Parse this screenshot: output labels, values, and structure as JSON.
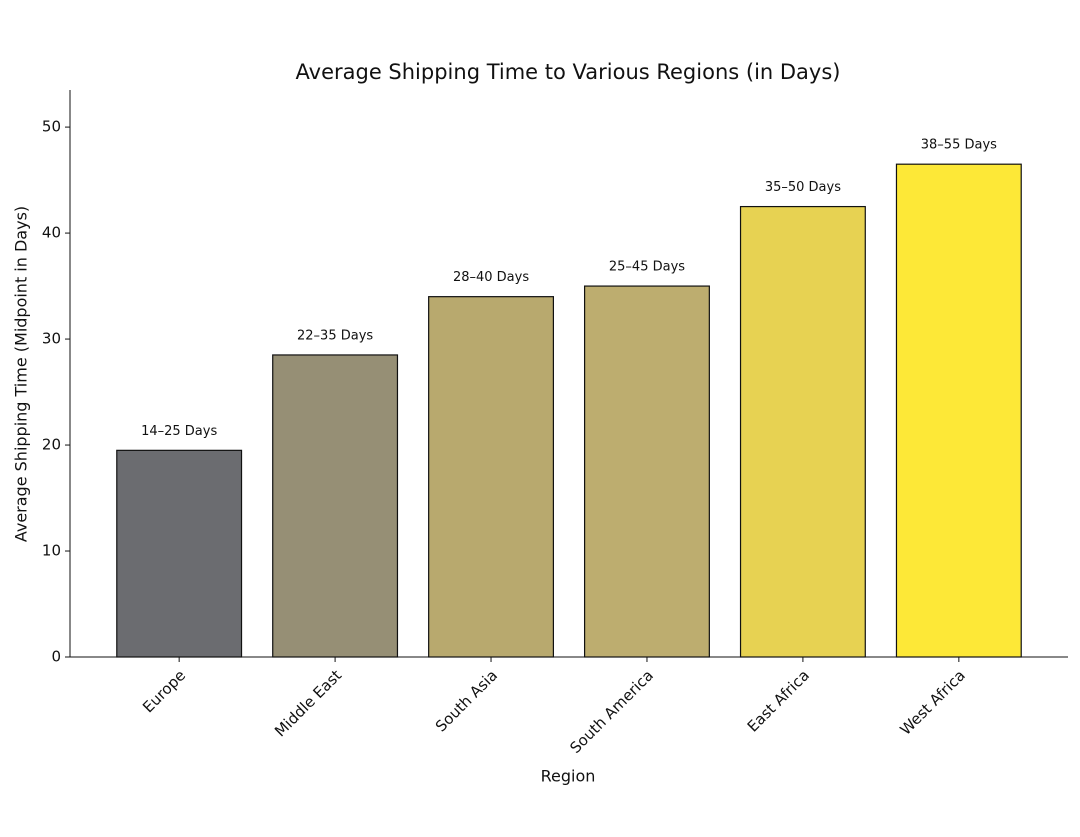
{
  "chart_data": {
    "type": "bar",
    "title": "Average Shipping Time to Various Regions (in Days)",
    "x_label": "Region",
    "y_label": "Average Shipping Time (Midpoint in Days)",
    "categories": [
      "Europe",
      "Middle East",
      "South Asia",
      "South America",
      "East Africa",
      "West Africa"
    ],
    "values": [
      19.5,
      28.5,
      34,
      35,
      42.5,
      46.5
    ],
    "annotations": [
      "14–25 Days",
      "22–35 Days",
      "28–40 Days",
      "25–45 Days",
      "35–50 Days",
      "38–55 Days"
    ],
    "colors": [
      "#6b6c70",
      "#968f75",
      "#b8a96e",
      "#bdad6f",
      "#e7d252",
      "#fde837"
    ],
    "ylim": [
      0,
      53.5
    ],
    "yticks": [
      0,
      10,
      20,
      30,
      40,
      50
    ],
    "grid": false
  }
}
